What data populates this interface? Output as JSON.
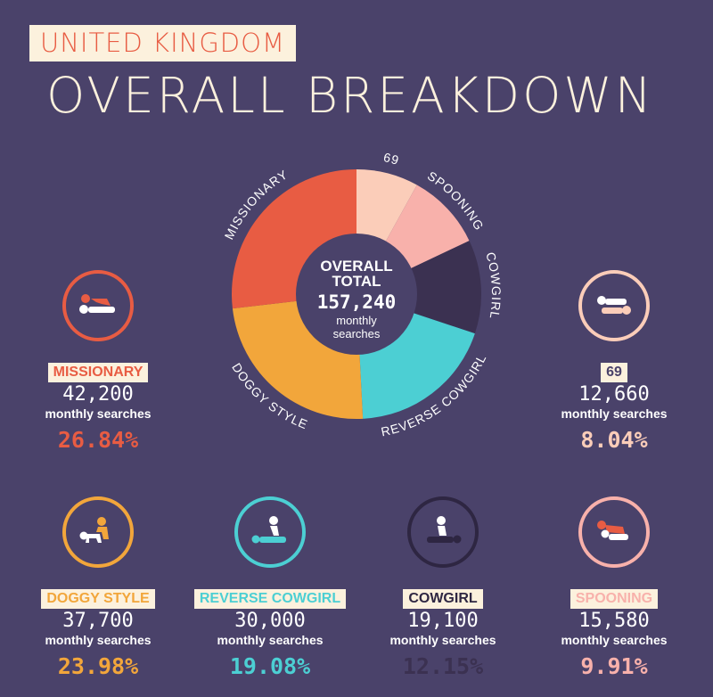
{
  "header": {
    "country": "UNITED KINGDOM",
    "title": "OVERALL BREAKDOWN"
  },
  "center": {
    "line1": "OVERALL",
    "line2": "TOTAL",
    "total": "157,240",
    "sub1": "monthly",
    "sub2": "searches"
  },
  "colors": {
    "background": "#4a426a",
    "missionary": "#e85c43",
    "sixty_nine": "#fbcdb9",
    "spooning": "#f8b1ab",
    "cowgirl": "#3b3151",
    "reverse_cowgirl": "#4ccfd3",
    "doggy_style": "#f2a63b",
    "tag_bg": "#fcf1dd"
  },
  "chart_data": {
    "type": "pie",
    "total": 157240,
    "categories": [
      "69",
      "SPOONING",
      "COWGIRL",
      "REVERSE COWGIRL",
      "DOGGY STYLE",
      "MISSIONARY"
    ],
    "values": [
      12660,
      15580,
      19100,
      30000,
      37700,
      42200
    ],
    "percents": [
      8.04,
      9.91,
      12.15,
      19.08,
      23.98,
      26.84
    ]
  },
  "cards": {
    "missionary": {
      "label": "MISSIONARY",
      "count": "42,200",
      "sub": "monthly searches",
      "pct": "26.84%",
      "icon": "missionary-position-icon"
    },
    "sixty_nine": {
      "label": "69",
      "count": "12,660",
      "sub": "monthly searches",
      "pct": "8.04%",
      "icon": "sixty-nine-position-icon"
    },
    "doggy_style": {
      "label": "DOGGY STYLE",
      "count": "37,700",
      "sub": "monthly searches",
      "pct": "23.98%",
      "icon": "doggy-style-position-icon"
    },
    "reverse_cowgirl": {
      "label": "REVERSE COWGIRL",
      "count": "30,000",
      "sub": "monthly searches",
      "pct": "19.08%",
      "icon": "reverse-cowgirl-position-icon"
    },
    "cowgirl": {
      "label": "COWGIRL",
      "count": "19,100",
      "sub": "monthly searches",
      "pct": "12.15%",
      "icon": "cowgirl-position-icon"
    },
    "spooning": {
      "label": "SPOONING",
      "count": "15,580",
      "sub": "monthly searches",
      "pct": "9.91%",
      "icon": "spooning-position-icon"
    }
  }
}
